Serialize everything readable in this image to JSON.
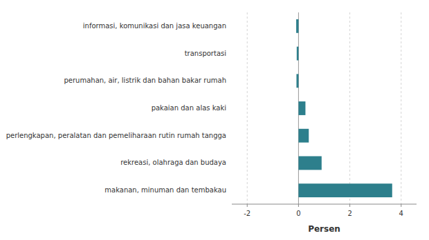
{
  "chart_data": {
    "type": "bar",
    "orientation": "horizontal",
    "categories": [
      "makanan, minuman dan tembakau",
      "rekreasi, olahraga dan budaya",
      "perlengkapan, peralatan dan pemeliharaan rutin rumah tangga",
      "pakaian dan alas kaki",
      "perumahan, air, listrik dan bahan bakar rumah",
      "transportasi",
      "informasi, komunikasi dan jasa keuangan"
    ],
    "values": [
      3.65,
      0.9,
      0.4,
      0.27,
      -0.08,
      -0.07,
      -0.09
    ],
    "color": "#2d7f8c",
    "xlabel": "Persen",
    "xlim": [
      -2.6,
      4.6
    ],
    "xticks": [
      -2,
      0,
      2,
      4
    ],
    "grid": true
  }
}
